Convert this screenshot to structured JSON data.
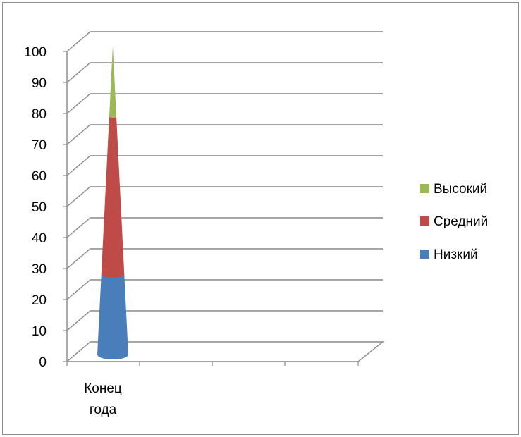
{
  "chart_data": {
    "type": "bar",
    "subtype": "3d-stacked-cone",
    "categories": [
      "Конец года"
    ],
    "category_label_lines": [
      "Конец",
      "года"
    ],
    "series": [
      {
        "name": "Низкий",
        "values": [
          26
        ],
        "color": "#4a7ebb"
      },
      {
        "name": "Средний",
        "values": [
          51
        ],
        "color": "#be4b48"
      },
      {
        "name": "Высокий",
        "values": [
          23
        ],
        "color": "#98b954"
      }
    ],
    "ylim": [
      0,
      100
    ],
    "yticks": [
      0,
      10,
      20,
      30,
      40,
      50,
      60,
      70,
      80,
      90,
      100
    ],
    "grid": true,
    "legend": "right",
    "legend_order": [
      "Высокий",
      "Средний",
      "Низкий"
    ],
    "title": "",
    "xlabel": "",
    "ylabel": ""
  }
}
